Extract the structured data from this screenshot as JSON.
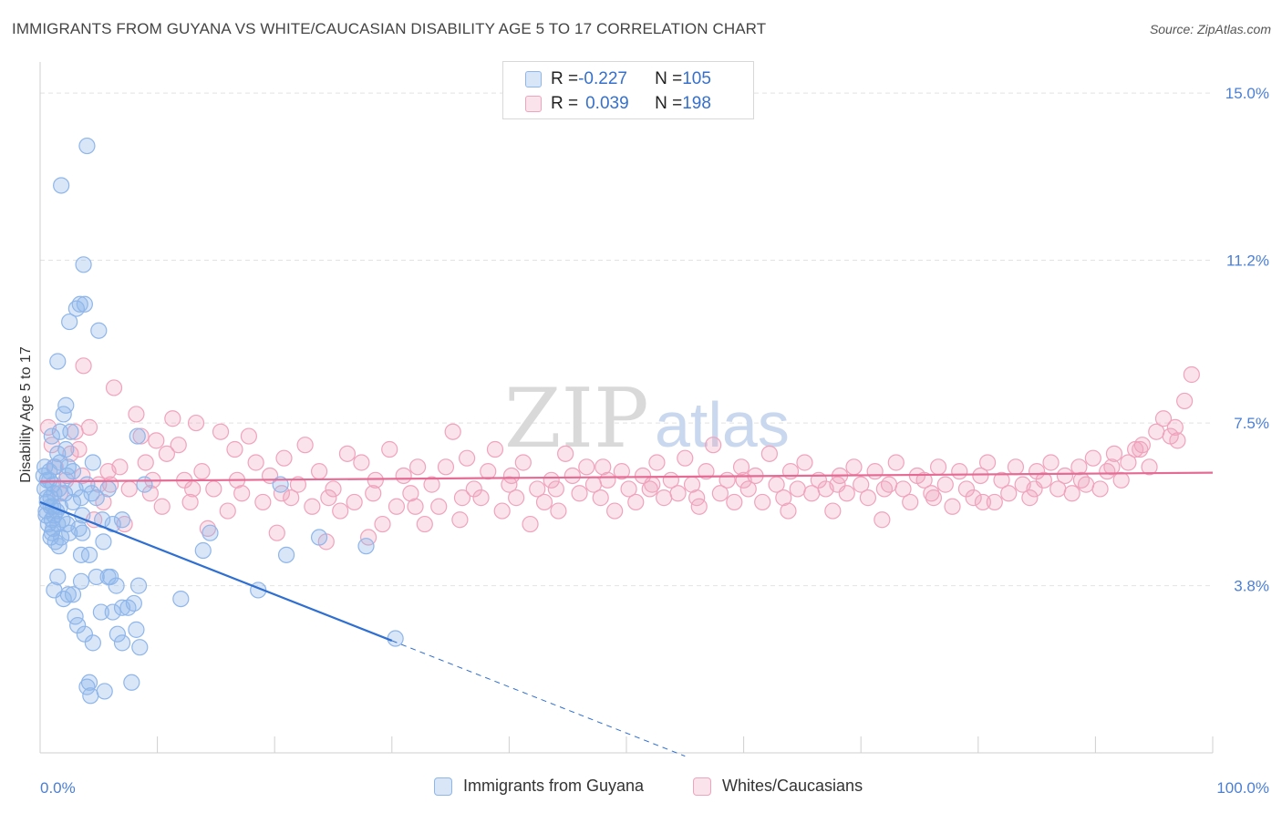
{
  "title": "IMMIGRANTS FROM GUYANA VS WHITE/CAUCASIAN DISABILITY AGE 5 TO 17 CORRELATION CHART",
  "source": "Source: ZipAtlas.com",
  "watermark": {
    "zip": "ZIP",
    "atlas": "atlas"
  },
  "legend": {
    "rows": [
      {
        "r_label": "R = ",
        "r_value": "-0.227",
        "n_label": "N = ",
        "n_value": "105"
      },
      {
        "r_label": "R = ",
        "r_value": "0.039",
        "n_label": "N = ",
        "n_value": "198"
      }
    ]
  },
  "bottom_legend": [
    "Immigrants from Guyana",
    "Whites/Caucasians"
  ],
  "colors": {
    "blue": "#8fb6ea",
    "blue_fill": "rgba(143,182,234,0.35)",
    "blue_line": "#2f6fd1",
    "pink": "#f0a3bc",
    "pink_fill": "rgba(240,163,188,0.30)",
    "pink_line": "#e56b94",
    "grid": "#e2e2e2",
    "axis_text": "#4a7fd4"
  },
  "chart_data": {
    "type": "scatter",
    "title": "IMMIGRANTS FROM GUYANA VS WHITE/CAUCASIAN DISABILITY AGE 5 TO 17 CORRELATION CHART",
    "xlabel": "",
    "ylabel": "Disability Age 5 to 17",
    "xlim": [
      0,
      100
    ],
    "ylim": [
      0,
      15.5
    ],
    "x_tick_labels": [
      "0.0%",
      "100.0%"
    ],
    "y_ticks": [
      3.8,
      7.5,
      11.2,
      15.0
    ],
    "y_tick_labels": [
      "3.8%",
      "7.5%",
      "11.2%",
      "15.0%"
    ],
    "grid": true,
    "legend_placement": "top-center",
    "series": [
      {
        "name": "Immigrants from Guyana",
        "R": -0.227,
        "N": 105,
        "trend": {
          "x0": 0,
          "y0": 5.7,
          "x1": 30,
          "y1": 2.55,
          "dashed_to_x": 55
        },
        "points": [
          [
            0.3,
            6.3
          ],
          [
            0.4,
            6.0
          ],
          [
            0.5,
            5.5
          ],
          [
            0.6,
            5.8
          ],
          [
            0.7,
            5.2
          ],
          [
            0.8,
            6.2
          ],
          [
            0.9,
            5.6
          ],
          [
            1.0,
            5.3
          ],
          [
            1.1,
            6.1
          ],
          [
            1.2,
            5.9
          ],
          [
            0.5,
            5.4
          ],
          [
            0.6,
            5.7
          ],
          [
            0.8,
            6.4
          ],
          [
            1.0,
            5.0
          ],
          [
            1.2,
            5.4
          ],
          [
            1.3,
            4.8
          ],
          [
            1.5,
            5.2
          ],
          [
            1.6,
            6.0
          ],
          [
            1.7,
            5.6
          ],
          [
            1.8,
            4.9
          ],
          [
            0.4,
            6.5
          ],
          [
            0.6,
            6.2
          ],
          [
            0.9,
            5.8
          ],
          [
            1.1,
            5.1
          ],
          [
            1.4,
            5.5
          ],
          [
            1.6,
            4.7
          ],
          [
            1.9,
            5.3
          ],
          [
            2.1,
            5.9
          ],
          [
            2.3,
            6.3
          ],
          [
            2.5,
            5.0
          ],
          [
            1.0,
            7.2
          ],
          [
            1.5,
            6.8
          ],
          [
            1.7,
            7.3
          ],
          [
            2.0,
            7.7
          ],
          [
            2.2,
            6.9
          ],
          [
            2.4,
            6.5
          ],
          [
            2.6,
            7.3
          ],
          [
            2.8,
            6.4
          ],
          [
            3.0,
            6.0
          ],
          [
            3.5,
            5.8
          ],
          [
            1.5,
            8.9
          ],
          [
            2.2,
            7.9
          ],
          [
            2.5,
            9.8
          ],
          [
            3.1,
            10.1
          ],
          [
            3.4,
            10.2
          ],
          [
            3.8,
            10.2
          ],
          [
            5.0,
            9.6
          ],
          [
            3.7,
            11.1
          ],
          [
            1.8,
            12.9
          ],
          [
            4.0,
            13.8
          ],
          [
            3.3,
            5.1
          ],
          [
            3.6,
            5.0
          ],
          [
            4.0,
            6.1
          ],
          [
            4.5,
            6.6
          ],
          [
            4.8,
            5.8
          ],
          [
            5.3,
            5.3
          ],
          [
            5.8,
            6.0
          ],
          [
            6.2,
            5.2
          ],
          [
            7.0,
            5.3
          ],
          [
            8.3,
            7.2
          ],
          [
            8.9,
            6.1
          ],
          [
            3.5,
            4.5
          ],
          [
            4.2,
            4.5
          ],
          [
            4.8,
            4.0
          ],
          [
            5.4,
            4.8
          ],
          [
            6.0,
            4.0
          ],
          [
            6.5,
            3.8
          ],
          [
            7.0,
            3.3
          ],
          [
            7.5,
            3.3
          ],
          [
            8.0,
            3.4
          ],
          [
            8.4,
            3.8
          ],
          [
            1.2,
            3.7
          ],
          [
            1.5,
            4.0
          ],
          [
            2.0,
            3.5
          ],
          [
            2.4,
            3.6
          ],
          [
            2.8,
            3.6
          ],
          [
            3.0,
            3.1
          ],
          [
            3.2,
            2.9
          ],
          [
            3.5,
            3.9
          ],
          [
            3.8,
            2.7
          ],
          [
            4.5,
            2.5
          ],
          [
            5.2,
            3.2
          ],
          [
            5.8,
            4.0
          ],
          [
            6.2,
            3.2
          ],
          [
            6.6,
            2.7
          ],
          [
            7.0,
            2.5
          ],
          [
            8.2,
            2.8
          ],
          [
            8.5,
            2.4
          ],
          [
            7.8,
            1.6
          ],
          [
            4.2,
            1.6
          ],
          [
            4.0,
            1.5
          ],
          [
            4.3,
            1.3
          ],
          [
            5.5,
            1.4
          ],
          [
            2.3,
            5.2
          ],
          [
            2.8,
            5.7
          ],
          [
            3.6,
            5.4
          ],
          [
            4.4,
            5.9
          ],
          [
            1.2,
            6.5
          ],
          [
            0.9,
            4.9
          ],
          [
            1.7,
            6.6
          ],
          [
            13.9,
            4.6
          ],
          [
            18.6,
            3.7
          ],
          [
            20.5,
            6.1
          ],
          [
            23.8,
            4.9
          ],
          [
            27.8,
            4.7
          ],
          [
            30.3,
            2.6
          ],
          [
            21.0,
            4.5
          ],
          [
            14.5,
            5.0
          ],
          [
            12.0,
            3.5
          ],
          [
            1.1,
            5.6
          ]
        ]
      },
      {
        "name": "Whites/Caucasians",
        "R": 0.039,
        "N": 198,
        "trend": {
          "x0": 0,
          "y0": 6.17,
          "x1": 100,
          "y1": 6.37
        },
        "points": [
          [
            0.7,
            7.4
          ],
          [
            1.0,
            7.0
          ],
          [
            1.3,
            6.5
          ],
          [
            1.7,
            5.9
          ],
          [
            2.2,
            6.2
          ],
          [
            2.6,
            6.8
          ],
          [
            3.0,
            7.3
          ],
          [
            3.3,
            6.9
          ],
          [
            3.7,
            8.8
          ],
          [
            4.2,
            7.4
          ],
          [
            4.6,
            5.3
          ],
          [
            5.0,
            6.1
          ],
          [
            5.4,
            5.7
          ],
          [
            5.8,
            6.4
          ],
          [
            6.3,
            8.3
          ],
          [
            6.8,
            6.5
          ],
          [
            7.2,
            5.2
          ],
          [
            7.6,
            6.0
          ],
          [
            8.2,
            7.7
          ],
          [
            8.6,
            7.2
          ],
          [
            9.0,
            6.6
          ],
          [
            9.4,
            5.9
          ],
          [
            9.9,
            7.1
          ],
          [
            10.4,
            5.6
          ],
          [
            10.8,
            6.8
          ],
          [
            11.3,
            7.6
          ],
          [
            11.8,
            7.0
          ],
          [
            12.3,
            6.2
          ],
          [
            12.8,
            5.7
          ],
          [
            13.3,
            7.5
          ],
          [
            13.8,
            6.4
          ],
          [
            14.3,
            5.1
          ],
          [
            14.8,
            6.0
          ],
          [
            15.4,
            7.3
          ],
          [
            16.0,
            5.5
          ],
          [
            16.6,
            6.9
          ],
          [
            17.2,
            5.9
          ],
          [
            17.8,
            7.2
          ],
          [
            18.4,
            6.6
          ],
          [
            19.0,
            5.7
          ],
          [
            19.6,
            6.3
          ],
          [
            20.2,
            5.0
          ],
          [
            20.8,
            6.7
          ],
          [
            21.4,
            5.8
          ],
          [
            22.0,
            6.1
          ],
          [
            22.6,
            7.0
          ],
          [
            23.2,
            5.6
          ],
          [
            23.8,
            6.4
          ],
          [
            24.4,
            4.8
          ],
          [
            25.0,
            6.0
          ],
          [
            25.6,
            5.5
          ],
          [
            26.2,
            6.8
          ],
          [
            26.8,
            5.7
          ],
          [
            27.4,
            6.6
          ],
          [
            28.0,
            4.9
          ],
          [
            28.6,
            6.2
          ],
          [
            29.2,
            5.2
          ],
          [
            29.8,
            6.9
          ],
          [
            30.4,
            5.6
          ],
          [
            31.0,
            6.3
          ],
          [
            31.6,
            5.9
          ],
          [
            32.2,
            6.5
          ],
          [
            32.8,
            5.2
          ],
          [
            33.4,
            6.1
          ],
          [
            34.0,
            5.6
          ],
          [
            34.6,
            6.5
          ],
          [
            35.2,
            7.3
          ],
          [
            35.8,
            5.3
          ],
          [
            36.4,
            6.7
          ],
          [
            37.0,
            6.0
          ],
          [
            37.6,
            5.8
          ],
          [
            38.2,
            6.4
          ],
          [
            38.8,
            6.9
          ],
          [
            39.4,
            5.5
          ],
          [
            40.0,
            6.1
          ],
          [
            40.6,
            5.8
          ],
          [
            41.2,
            6.6
          ],
          [
            41.8,
            5.2
          ],
          [
            42.4,
            6.0
          ],
          [
            43.0,
            5.7
          ],
          [
            43.6,
            6.2
          ],
          [
            44.2,
            5.5
          ],
          [
            44.8,
            6.8
          ],
          [
            45.4,
            6.3
          ],
          [
            46.0,
            5.9
          ],
          [
            46.6,
            6.5
          ],
          [
            47.2,
            6.1
          ],
          [
            47.8,
            5.8
          ],
          [
            48.4,
            6.2
          ],
          [
            49.0,
            5.5
          ],
          [
            49.6,
            6.4
          ],
          [
            50.2,
            6.0
          ],
          [
            50.8,
            5.7
          ],
          [
            51.4,
            6.3
          ],
          [
            52.0,
            6.0
          ],
          [
            52.6,
            6.6
          ],
          [
            53.2,
            5.8
          ],
          [
            53.8,
            6.2
          ],
          [
            54.4,
            5.9
          ],
          [
            55.0,
            6.7
          ],
          [
            55.6,
            6.1
          ],
          [
            56.2,
            5.6
          ],
          [
            56.8,
            6.4
          ],
          [
            57.4,
            7.0
          ],
          [
            58.0,
            5.9
          ],
          [
            58.6,
            6.2
          ],
          [
            59.2,
            5.7
          ],
          [
            59.8,
            6.5
          ],
          [
            60.4,
            6.0
          ],
          [
            61.0,
            6.3
          ],
          [
            61.6,
            5.7
          ],
          [
            62.2,
            6.8
          ],
          [
            62.8,
            6.1
          ],
          [
            63.4,
            5.8
          ],
          [
            64.0,
            6.4
          ],
          [
            64.6,
            6.0
          ],
          [
            65.2,
            6.6
          ],
          [
            65.8,
            5.9
          ],
          [
            66.4,
            6.2
          ],
          [
            67.0,
            6.0
          ],
          [
            67.6,
            5.5
          ],
          [
            68.2,
            6.3
          ],
          [
            68.8,
            5.9
          ],
          [
            69.4,
            6.5
          ],
          [
            70.0,
            6.1
          ],
          [
            70.6,
            5.8
          ],
          [
            71.2,
            6.4
          ],
          [
            71.8,
            5.3
          ],
          [
            72.4,
            6.1
          ],
          [
            73.0,
            6.6
          ],
          [
            73.6,
            6.0
          ],
          [
            74.2,
            5.7
          ],
          [
            74.8,
            6.3
          ],
          [
            75.4,
            6.2
          ],
          [
            76.0,
            5.9
          ],
          [
            76.6,
            6.5
          ],
          [
            77.2,
            6.1
          ],
          [
            77.8,
            5.6
          ],
          [
            78.4,
            6.4
          ],
          [
            79.0,
            6.0
          ],
          [
            79.6,
            5.8
          ],
          [
            80.2,
            6.3
          ],
          [
            80.8,
            6.6
          ],
          [
            81.4,
            5.7
          ],
          [
            82.0,
            6.2
          ],
          [
            82.6,
            5.9
          ],
          [
            83.2,
            6.5
          ],
          [
            83.8,
            6.1
          ],
          [
            84.4,
            5.8
          ],
          [
            85.0,
            6.4
          ],
          [
            85.6,
            6.2
          ],
          [
            86.2,
            6.6
          ],
          [
            86.8,
            6.0
          ],
          [
            87.4,
            6.3
          ],
          [
            88.0,
            5.9
          ],
          [
            88.6,
            6.5
          ],
          [
            89.2,
            6.1
          ],
          [
            89.8,
            6.7
          ],
          [
            90.4,
            6.0
          ],
          [
            91.0,
            6.4
          ],
          [
            91.6,
            6.8
          ],
          [
            92.2,
            6.2
          ],
          [
            92.8,
            6.6
          ],
          [
            93.4,
            6.9
          ],
          [
            94.0,
            7.0
          ],
          [
            94.6,
            6.5
          ],
          [
            95.2,
            7.3
          ],
          [
            95.8,
            7.6
          ],
          [
            96.4,
            7.2
          ],
          [
            97.0,
            7.1
          ],
          [
            97.6,
            8.0
          ],
          [
            98.2,
            8.6
          ],
          [
            96.8,
            7.4
          ],
          [
            93.8,
            6.9
          ],
          [
            91.4,
            6.5
          ],
          [
            88.8,
            6.2
          ],
          [
            84.8,
            6.0
          ],
          [
            80.4,
            5.7
          ],
          [
            76.2,
            5.8
          ],
          [
            72.0,
            6.0
          ],
          [
            68.0,
            6.1
          ],
          [
            63.8,
            5.5
          ],
          [
            60.0,
            6.2
          ],
          [
            56.0,
            5.8
          ],
          [
            52.2,
            6.1
          ],
          [
            48.0,
            6.5
          ],
          [
            44.0,
            6.0
          ],
          [
            40.2,
            6.3
          ],
          [
            36.0,
            5.8
          ],
          [
            32.0,
            5.6
          ],
          [
            28.4,
            5.9
          ],
          [
            24.6,
            5.8
          ],
          [
            20.6,
            5.9
          ],
          [
            16.8,
            6.2
          ],
          [
            13.0,
            6.0
          ],
          [
            9.6,
            6.2
          ],
          [
            6.0,
            6.1
          ],
          [
            3.6,
            6.3
          ]
        ]
      }
    ]
  }
}
